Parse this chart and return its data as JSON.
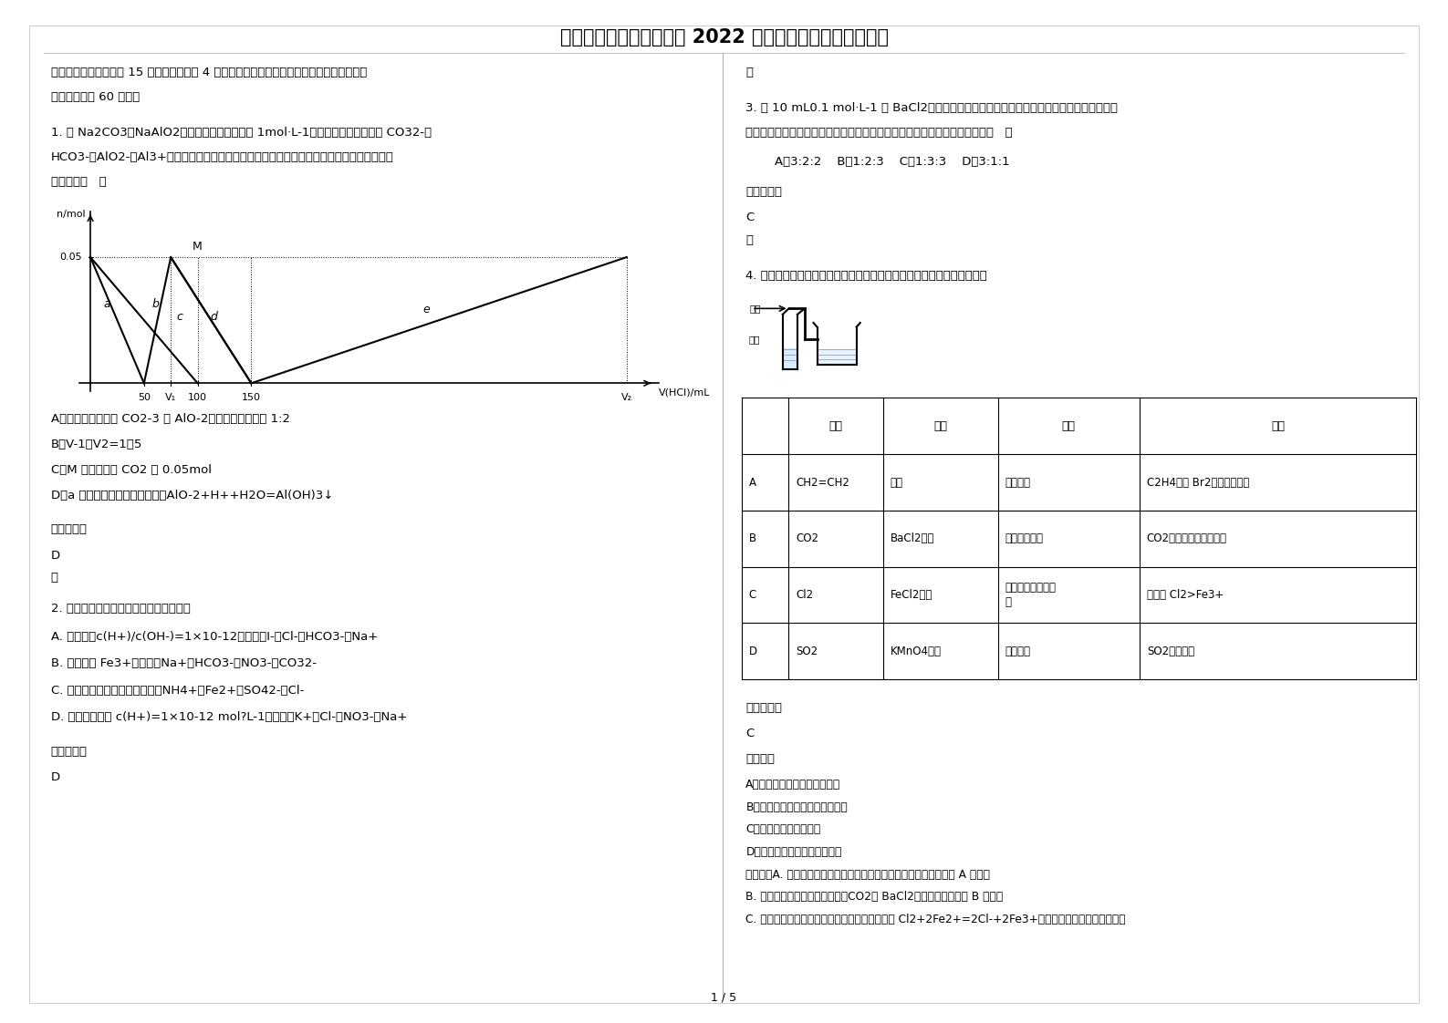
{
  "title": "辽宁省鞍山市哈达碑中学 2022 年高三化学联考试卷含解析",
  "background_color": "#ffffff",
  "text_color": "#000000",
  "page_number": "1 / 5",
  "left_column": {
    "section1_header": "一、单选题（本大题共 15 个小题，每小题 4 分。在每小题给出的四个选项中，只有一项符合\n题目要求，共 60 分。）",
    "q1_text_line1": "1. 某 Na2CO3、NaAlO2的混合溶液中逐滴加入 1mol·L-1的盐酸，测得溶液中的 CO32-、",
    "q1_text_line2": "HCO3-、AlO2-、Al3+离子的物质的量与加入盐酸溶液的体积变化关系如图所示，则下列说法",
    "q1_text_line3": "正确的是（   ）",
    "q1_options": [
      "A．原混合溶液中的 CO2-3 与 AlO-2的物质的量之比为 1:2",
      "B．V-1：V2=1：5",
      "C．M 点时生成的 CO2 为 0.05mol",
      "D．a 曲线表示的离子方程式为：AlO-2+H++H2O=Al(OH)3↓"
    ],
    "q1_answer_label": "参考答案：",
    "q1_answer": "D",
    "q1_note": "略",
    "q2_text": "2. 下列各组离子，一定能大量共存的是：",
    "q2_options": [
      "A. 常温下，c(H+)/c(OH-)=1×10-12的溶液：I-、Cl-、HCO3-、Na+",
      "B. 含有大量 Fe3+的溶液：Na+、HCO3-、NO3-、CO32-",
      "C. 加入铝粉能产生氢气的溶液：NH4+、Fe2+、SO42-、Cl-",
      "D. 由水电离出的 c(H+)=1×10-12 mol?L-1溶液中：K+、Cl-、NO3-、Na+"
    ],
    "q2_answer_label": "参考答案：",
    "q2_answer": "D"
  },
  "right_column": {
    "q2_note": "略",
    "q3_text_line1": "3. 用 10 mL0.1 mol·L-1 的 BaCl2溶液恰好可使相同体积的硫酸铁、硫酸锌和硫酸钾三种溶液",
    "q3_text_line2": "中的硫酸根离子完全转化为硫酸钡沉淀，则三种溶液的物质的量浓度之比是（   ）",
    "q3_opts_inline": "A．3:2:2    B．1:2:3    C．1:3:3    D．3:1:1",
    "q3_answer_label": "参考答案：",
    "q3_answer": "C",
    "q3_note": "略",
    "q4_text": "4. 如图装置可用于验证气体的某些化学性质，所得现象和结论均正确的是",
    "table_headers": [
      "",
      "气体",
      "试剂",
      "现象",
      "结论"
    ],
    "table_rows": [
      [
        "A",
        "CH2=CH2",
        "溴水",
        "溶液褪色",
        "C2H4能与 Br2发生取代反应"
      ],
      [
        "B",
        "CO2",
        "BaCl2溶液",
        "产生白色沉淀",
        "CO2能与可溶性钡盐反应"
      ],
      [
        "C",
        "Cl2",
        "FeCl2溶液",
        "溶液由浅绿色变黄\n色",
        "氧化性 Cl2>Fe3+"
      ],
      [
        "D",
        "SO2",
        "KMnO4溶液",
        "溶液褪色",
        "SO2有漂白性"
      ]
    ],
    "q4_answer_label": "参考答案：",
    "q4_answer": "C",
    "q4_analysis_bold": "【分析】",
    "q4_analysis_items": [
      "A．乙烯与溴水发生加成反应；",
      "B．盐酸的酸性大于碳酸的酸性；",
      "C．氯气氧化亚铁离子；",
      "D．二氧化硫较高锰酸钾氧化。",
      "【详解】A. 乙烯含碳碳双键，与溴水发生加成反应，溴水褪色，选项 A 错误；",
      "B. 盐酸的酸性大于碳酸的酸性，CO2与 BaCl2溶液不反应，选项 B 错误；",
      "C. 氯气氧化亚铁离子，溶液变为黄色，发生反应 Cl2+2Fe2+=2Cl-+2Fe3+，根据氧化剂的氧化性强于氧"
    ]
  }
}
